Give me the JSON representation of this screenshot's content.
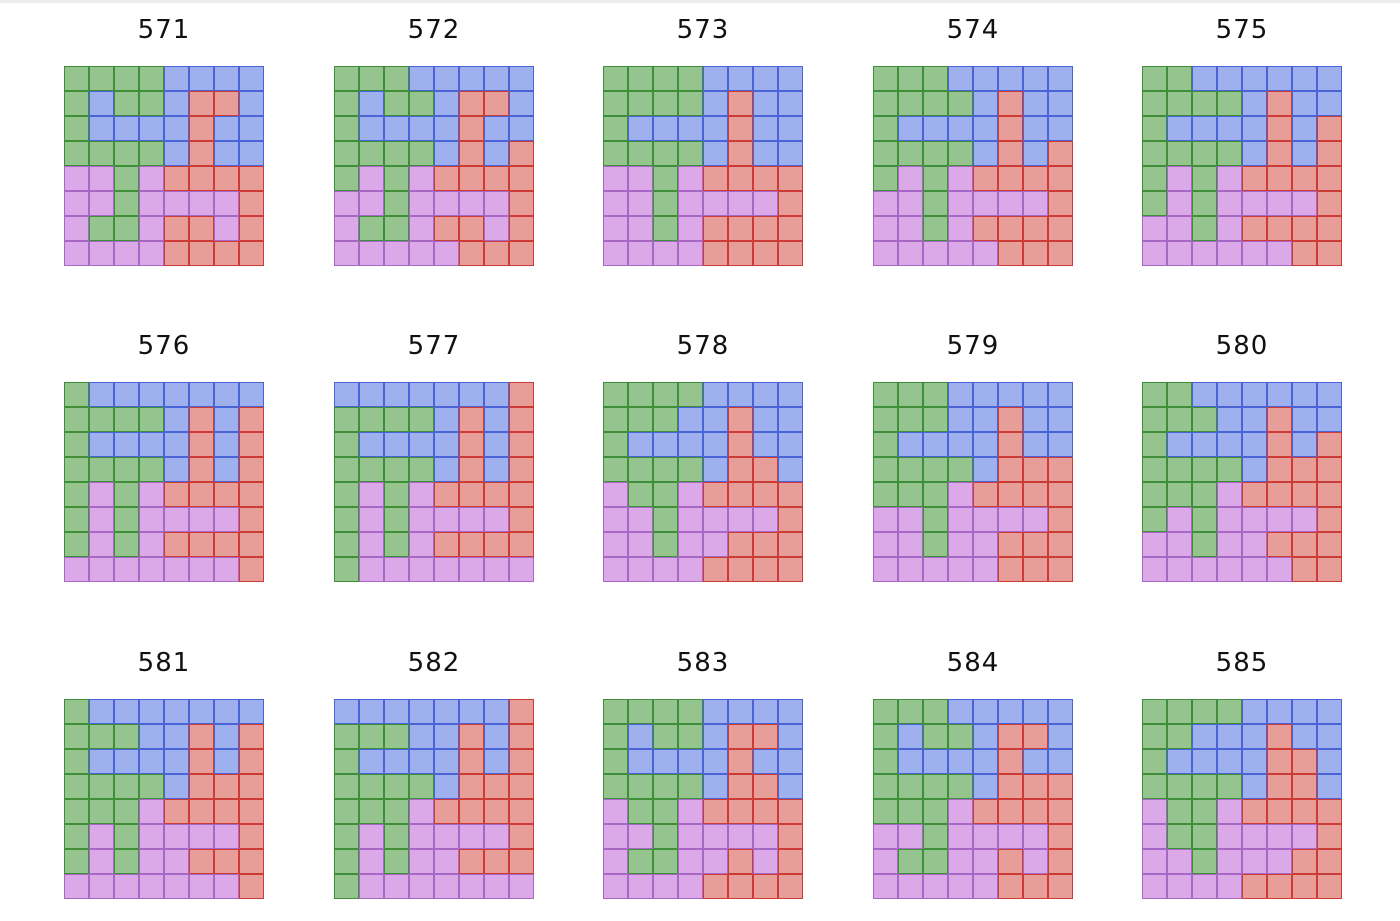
{
  "colors": {
    "G": {
      "fill": "#96c48e",
      "stroke": "#3f8f3a"
    },
    "B": {
      "fill": "#9fb0ee",
      "stroke": "#4a64d8"
    },
    "R": {
      "fill": "#e89e98",
      "stroke": "#cc3b35"
    },
    "P": {
      "fill": "#dba9e8",
      "stroke": "#a767c4"
    }
  },
  "panels": [
    {
      "label": "571",
      "grid": [
        "GGGGBBBB",
        "GBGGBRRB",
        "GBBBBRBB",
        "GGGGBRBB",
        "PPGPRRRR",
        "PPGPPPPR",
        "PGGPRRPR",
        "PPPPRRRR"
      ]
    },
    {
      "label": "572",
      "grid": [
        "GGGBBBBB",
        "GBGGBRRB",
        "GBBBBRBB",
        "GGGGBRBR",
        "GPGPRRRR",
        "PPGPPPPR",
        "PGGPRRPR",
        "PPPPPRRR"
      ]
    },
    {
      "label": "573",
      "grid": [
        "GGGGBBBB",
        "GGGGBRBB",
        "GBBBBRBB",
        "GGGGBRBB",
        "PPGPRRRR",
        "PPGPPPPR",
        "PPGPRRRR",
        "PPPPRRRR"
      ]
    },
    {
      "label": "574",
      "grid": [
        "GGGBBBBB",
        "GGGGBRBB",
        "GBBBBRBB",
        "GGGGBRBR",
        "GPGPRRRR",
        "PPGPPPPR",
        "PPGPRRRR",
        "PPPPPRRR"
      ]
    },
    {
      "label": "575",
      "grid": [
        "GGBBBBBB",
        "GGGGBRBB",
        "GBBBBRBR",
        "GGGGBRBR",
        "GPGPRRRR",
        "GPGPPPPR",
        "PPGPRRRR",
        "PPPPPPRR"
      ]
    },
    {
      "label": "576",
      "grid": [
        "GBBBBBBB",
        "GGGGBRBR",
        "GBBBBRBR",
        "GGGGBRBR",
        "GPGPRRRR",
        "GPGPPPPR",
        "GPGPRRRR",
        "PPPPPPPR"
      ]
    },
    {
      "label": "577",
      "grid": [
        "BBBBBBBR",
        "GGGGBRBR",
        "GBBBBRBR",
        "GGGGBRBR",
        "GPGPRRRR",
        "GPGPPPPR",
        "GPGPRRRR",
        "GPPPPPPP"
      ]
    },
    {
      "label": "578",
      "grid": [
        "GGGGBBBB",
        "GGGBBRBB",
        "GBBBBRBB",
        "GGGGBRRB",
        "PGGPRRRR",
        "PPGPPPPR",
        "PPGPPRRR",
        "PPPPRRRR"
      ]
    },
    {
      "label": "579",
      "grid": [
        "GGGBBBBB",
        "GGGBBRBB",
        "GBBBBRBB",
        "GGGGBRRR",
        "GGGPRRRR",
        "PPGPPPPR",
        "PPGPPRRR",
        "PPPPPRRR"
      ]
    },
    {
      "label": "580",
      "grid": [
        "GGBBBBBB",
        "GGGBBRBB",
        "GBBBBRBR",
        "GGGGBRRR",
        "GGGPRRRR",
        "GPGPPPPR",
        "PPGPPRRR",
        "PPPPPPRR"
      ]
    },
    {
      "label": "581",
      "grid": [
        "GBBBBBBB",
        "GGGBBRBR",
        "GBBBBRBR",
        "GGGGBRRR",
        "GGGPRRRR",
        "GPGPPPPR",
        "GPGPPRRR",
        "PPPPPPPR"
      ]
    },
    {
      "label": "582",
      "grid": [
        "BBBBBBBR",
        "GGGBBRBR",
        "GBBBBRBR",
        "GGGGBRRR",
        "GGGPRRRR",
        "GPGPPPPR",
        "GPGPPRRR",
        "GPPPPPPP"
      ]
    },
    {
      "label": "583",
      "grid": [
        "GGGGBBBB",
        "GBGGBRRB",
        "GBBBBRBB",
        "GGGGBRRB",
        "PGGPRRRR",
        "PPGPPPPR",
        "PGGPPRPR",
        "PPPPRRRR"
      ]
    },
    {
      "label": "584",
      "grid": [
        "GGGBBBBB",
        "GBGGBRRB",
        "GBBBBRBB",
        "GGGGBRRR",
        "GGGPRRRR",
        "PPGPPPPR",
        "PGGPPRPR",
        "PPPPPRRR"
      ]
    },
    {
      "label": "585",
      "grid": [
        "GGGGBBBB",
        "GGBBBRBB",
        "GBBBBRRB",
        "GGGGBRRB",
        "PGGPRRRR",
        "PGGPPPPR",
        "PPGPPPRR",
        "PPPPRRRR"
      ]
    }
  ]
}
